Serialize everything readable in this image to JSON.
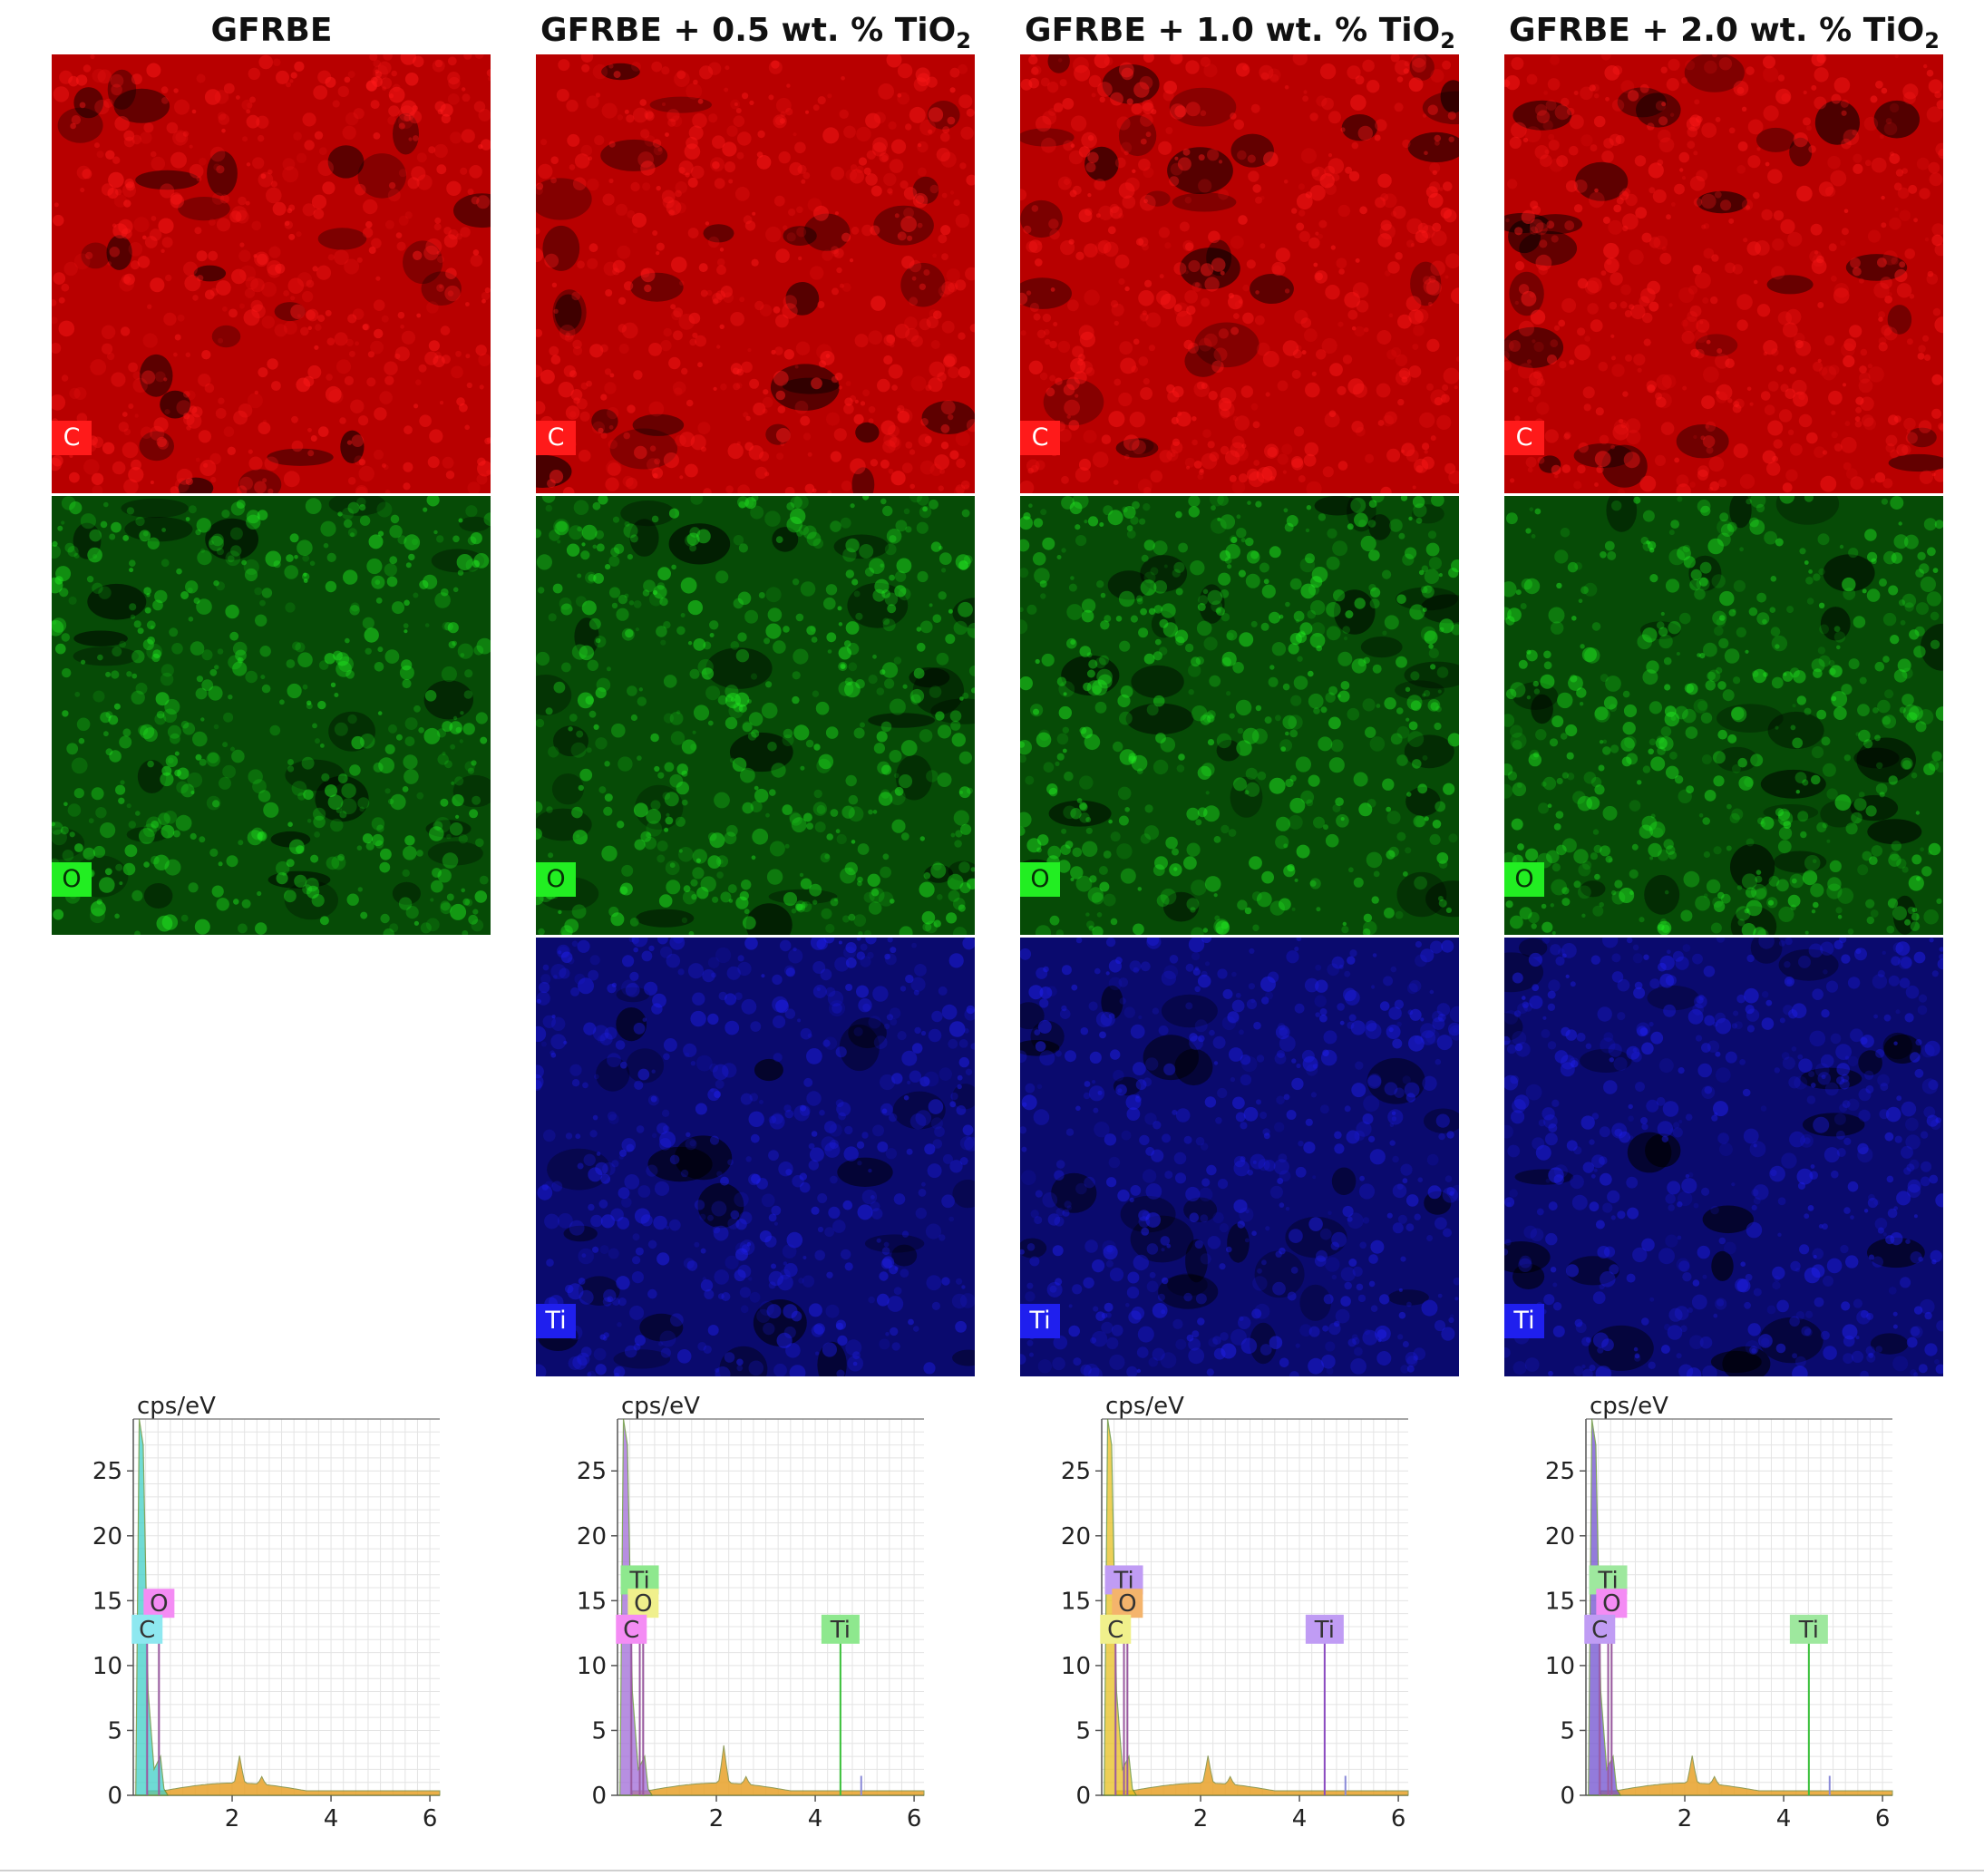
{
  "figure": {
    "columns": [
      {
        "title": "GFRBE",
        "title_sub": "",
        "maps": [
          {
            "element": "C",
            "color": "#ff1a1a",
            "base": "#b80000"
          },
          {
            "element": "O",
            "color": "#22ee22",
            "base": "#064b06"
          }
        ],
        "spectrum": {
          "ylabel": "cps/eV",
          "peak_labels": [
            {
              "text": "O",
              "energy": 0.52,
              "y": 14.8,
              "bg": "#f48cf4"
            },
            {
              "text": "C",
              "energy": 0.28,
              "y": 12.8,
              "bg": "#8ee8f0"
            }
          ]
        }
      },
      {
        "title": "GFRBE + 0.5 wt. % TiO",
        "title_sub": "2",
        "maps": [
          {
            "element": "C",
            "color": "#ff1a1a",
            "base": "#b80000"
          },
          {
            "element": "O",
            "color": "#22ee22",
            "base": "#064b06"
          },
          {
            "element": "Ti",
            "color": "#1f1fee",
            "base": "#0a0a6e"
          }
        ],
        "spectrum": {
          "ylabel": "cps/eV",
          "peak_labels": [
            {
              "text": "Ti",
              "energy": 0.45,
              "y": 16.6,
              "bg": "#8ee88e"
            },
            {
              "text": "O",
              "energy": 0.52,
              "y": 14.8,
              "bg": "#f0f08c"
            },
            {
              "text": "C",
              "energy": 0.28,
              "y": 12.8,
              "bg": "#f48cf4"
            },
            {
              "text": "Ti",
              "energy": 4.51,
              "y": 12.8,
              "bg": "#8ee88e"
            }
          ]
        }
      },
      {
        "title": "GFRBE + 1.0 wt. % TiO",
        "title_sub": "2",
        "maps": [
          {
            "element": "C",
            "color": "#ff1a1a",
            "base": "#b80000"
          },
          {
            "element": "O",
            "color": "#22ee22",
            "base": "#064b06"
          },
          {
            "element": "Ti",
            "color": "#1f1fee",
            "base": "#0a0a6e"
          }
        ],
        "spectrum": {
          "ylabel": "cps/eV",
          "peak_labels": [
            {
              "text": "Ti",
              "energy": 0.45,
              "y": 16.6,
              "bg": "#c09cf4"
            },
            {
              "text": "O",
              "energy": 0.52,
              "y": 14.8,
              "bg": "#f4b46c"
            },
            {
              "text": "C",
              "energy": 0.28,
              "y": 12.8,
              "bg": "#f0f08c"
            },
            {
              "text": "Ti",
              "energy": 4.51,
              "y": 12.8,
              "bg": "#c09cf4"
            }
          ]
        }
      },
      {
        "title": "GFRBE + 2.0 wt. % TiO",
        "title_sub": "2",
        "maps": [
          {
            "element": "C",
            "color": "#ff1a1a",
            "base": "#b80000"
          },
          {
            "element": "O",
            "color": "#22ee22",
            "base": "#064b06"
          },
          {
            "element": "Ti",
            "color": "#1f1fee",
            "base": "#0a0a6e"
          }
        ],
        "spectrum": {
          "ylabel": "cps/eV",
          "peak_labels": [
            {
              "text": "Ti",
              "energy": 0.45,
              "y": 16.6,
              "bg": "#9ee89e"
            },
            {
              "text": "O",
              "energy": 0.52,
              "y": 14.8,
              "bg": "#f48cf4"
            },
            {
              "text": "C",
              "energy": 0.28,
              "y": 12.8,
              "bg": "#c09cf4"
            },
            {
              "text": "Ti",
              "energy": 4.51,
              "y": 12.8,
              "bg": "#9ee89e"
            }
          ]
        }
      }
    ],
    "spectrum_axes": {
      "y_ticks": [
        "0",
        "5",
        "10",
        "15",
        "20",
        "25"
      ],
      "x_ticks": [
        "2",
        "4",
        "6"
      ],
      "xlim": [
        0,
        6.2
      ],
      "ylim": [
        0,
        29
      ]
    }
  }
}
